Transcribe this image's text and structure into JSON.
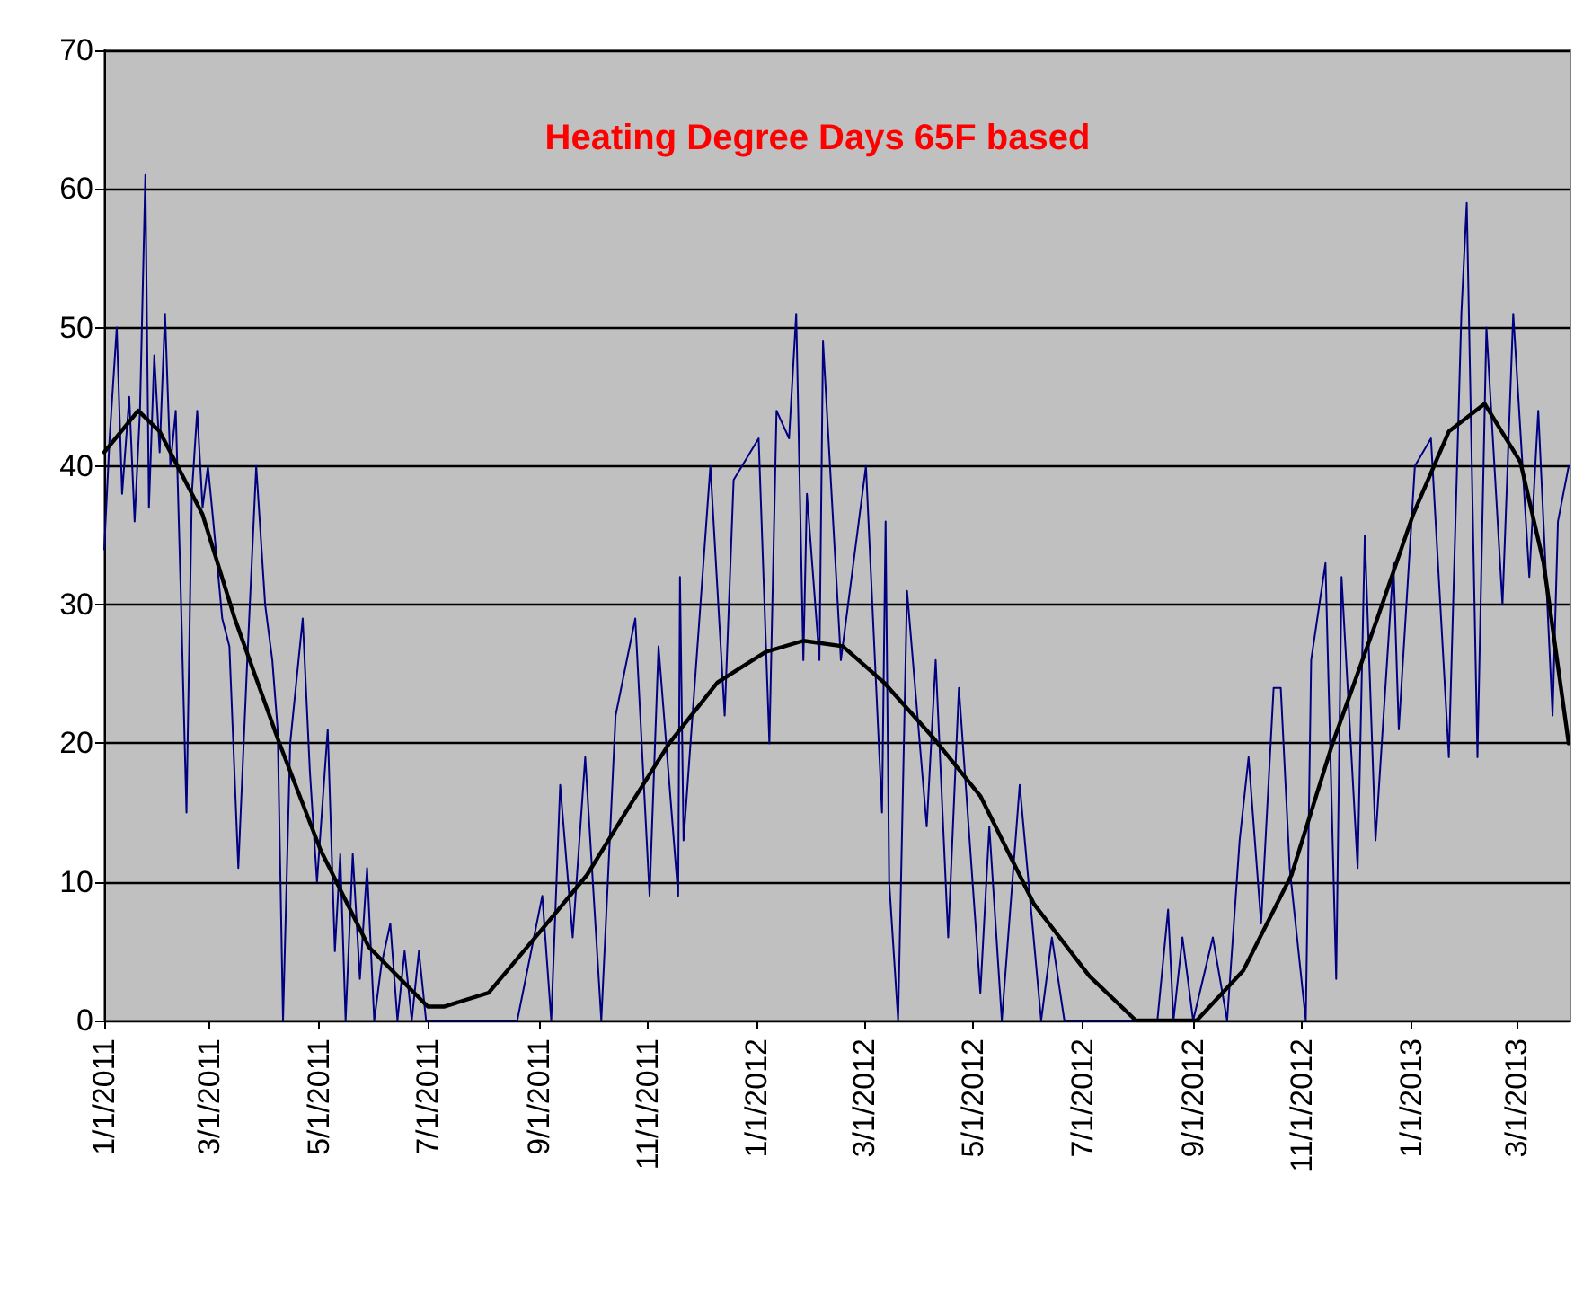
{
  "chart_data": {
    "type": "line",
    "title": "Heating Degree Days 65F based",
    "xlim": [
      "2011-01-01",
      "2013-03-31"
    ],
    "xticks": [
      {
        "value": "2011-01-01",
        "label": "1/1/2011"
      },
      {
        "value": "2011-03-01",
        "label": "3/1/2011"
      },
      {
        "value": "2011-05-01",
        "label": "5/1/2011"
      },
      {
        "value": "2011-07-01",
        "label": "7/1/2011"
      },
      {
        "value": "2011-09-01",
        "label": "9/1/2011"
      },
      {
        "value": "2011-11-01",
        "label": "11/1/2011"
      },
      {
        "value": "2012-01-01",
        "label": "1/1/2012"
      },
      {
        "value": "2012-03-01",
        "label": "3/1/2012"
      },
      {
        "value": "2012-05-01",
        "label": "5/1/2012"
      },
      {
        "value": "2012-07-01",
        "label": "7/1/2012"
      },
      {
        "value": "2012-09-01",
        "label": "9/1/2012"
      },
      {
        "value": "2012-11-01",
        "label": "11/1/2012"
      },
      {
        "value": "2013-01-01",
        "label": "1/1/2013"
      },
      {
        "value": "2013-03-01",
        "label": "3/1/2013"
      }
    ],
    "ylim": [
      0,
      70
    ],
    "yticks": [
      0,
      10,
      20,
      30,
      40,
      50,
      60,
      70
    ],
    "grid": "y",
    "marker": "none",
    "line_style": "solid",
    "series": [
      {
        "color": "#000080",
        "x": [
          "2011-01-01",
          "2011-01-04",
          "2011-01-08",
          "2011-01-11",
          "2011-01-15",
          "2011-01-18",
          "2011-01-21",
          "2011-01-24",
          "2011-01-26",
          "2011-01-29",
          "2011-02-01",
          "2011-02-04",
          "2011-02-07",
          "2011-02-10",
          "2011-02-13",
          "2011-02-16",
          "2011-02-19",
          "2011-02-22",
          "2011-02-25",
          "2011-02-28",
          "2011-03-03",
          "2011-03-08",
          "2011-03-12",
          "2011-03-17",
          "2011-03-22",
          "2011-03-27",
          "2011-04-01",
          "2011-04-05",
          "2011-04-08",
          "2011-04-11",
          "2011-04-15",
          "2011-04-22",
          "2011-04-26",
          "2011-04-30",
          "2011-05-06",
          "2011-05-10",
          "2011-05-13",
          "2011-05-16",
          "2011-05-20",
          "2011-05-24",
          "2011-05-28",
          "2011-06-01",
          "2011-06-05",
          "2011-06-10",
          "2011-06-14",
          "2011-06-18",
          "2011-06-22",
          "2011-06-26",
          "2011-06-30",
          "2011-07-15",
          "2011-08-01",
          "2011-08-20",
          "2011-09-03",
          "2011-09-08",
          "2011-09-13",
          "2011-09-20",
          "2011-09-27",
          "2011-10-06",
          "2011-10-14",
          "2011-10-25",
          "2011-11-02",
          "2011-11-07",
          "2011-11-18",
          "2011-11-19",
          "2011-11-21",
          "2011-12-01",
          "2011-12-06",
          "2011-12-14",
          "2011-12-19",
          "2012-01-02",
          "2012-01-08",
          "2012-01-12",
          "2012-01-19",
          "2012-01-23",
          "2012-01-27",
          "2012-01-29",
          "2012-02-05",
          "2012-02-07",
          "2012-02-17",
          "2012-02-27",
          "2012-03-02",
          "2012-03-11",
          "2012-03-13",
          "2012-03-15",
          "2012-03-20",
          "2012-03-25",
          "2012-04-05",
          "2012-04-10",
          "2012-04-17",
          "2012-04-23",
          "2012-05-05",
          "2012-05-10",
          "2012-05-17",
          "2012-05-27",
          "2012-06-08",
          "2012-06-14",
          "2012-06-21",
          "2012-07-06",
          "2012-07-25",
          "2012-08-12",
          "2012-08-18",
          "2012-08-21",
          "2012-08-26",
          "2012-09-01",
          "2012-09-12",
          "2012-09-20",
          "2012-09-27",
          "2012-10-02",
          "2012-10-09",
          "2012-10-16",
          "2012-10-20",
          "2012-10-25",
          "2012-11-03",
          "2012-11-06",
          "2012-11-14",
          "2012-11-20",
          "2012-11-23",
          "2012-12-02",
          "2012-12-06",
          "2012-12-12",
          "2012-12-22",
          "2012-12-25",
          "2013-01-03",
          "2013-01-12",
          "2013-01-22",
          "2013-01-29",
          "2013-02-01",
          "2013-02-07",
          "2013-02-12",
          "2013-02-21",
          "2013-02-27",
          "2013-03-08",
          "2013-03-13",
          "2013-03-21",
          "2013-03-24",
          "2013-03-30"
        ],
        "values": [
          34,
          42,
          50,
          38,
          45,
          36,
          44,
          61,
          37,
          48,
          41,
          51,
          40,
          44,
          30,
          15,
          38,
          44,
          37,
          40,
          36,
          29,
          27,
          11,
          26,
          40,
          30,
          26,
          21,
          0,
          20,
          29,
          18,
          10,
          21,
          5,
          12,
          0,
          12,
          3,
          11,
          0,
          4,
          7,
          0,
          5,
          0,
          5,
          0,
          0,
          0,
          0,
          9,
          0,
          17,
          6,
          19,
          0,
          22,
          29,
          9,
          27,
          9,
          32,
          13,
          31,
          40,
          22,
          39,
          42,
          20,
          44,
          42,
          51,
          26,
          38,
          26,
          49,
          26,
          36,
          40,
          15,
          36,
          10,
          0,
          31,
          14,
          26,
          6,
          24,
          2,
          14,
          0,
          17,
          0,
          6,
          0,
          0,
          0,
          0,
          8,
          0,
          6,
          0,
          6,
          0,
          13,
          19,
          7,
          24,
          24,
          11,
          0,
          26,
          33,
          3,
          32,
          11,
          35,
          13,
          33,
          21,
          40,
          42,
          19,
          51,
          59,
          19,
          50,
          30,
          51,
          32,
          44,
          22,
          36,
          40
        ]
      },
      {
        "color": "#000000",
        "x": [
          "2011-01-01",
          "2011-01-20",
          "2011-02-01",
          "2011-02-25",
          "2011-03-15",
          "2011-04-09",
          "2011-05-02",
          "2011-05-29",
          "2011-07-01",
          "2011-07-10",
          "2011-08-04",
          "2011-09-03",
          "2011-09-28",
          "2011-10-21",
          "2011-11-13",
          "2011-12-10",
          "2012-01-06",
          "2012-01-27",
          "2012-02-18",
          "2012-03-12",
          "2012-04-08",
          "2012-05-05",
          "2012-06-04",
          "2012-07-05",
          "2012-07-31",
          "2012-09-03",
          "2012-09-29",
          "2012-10-26",
          "2012-11-18",
          "2012-12-13",
          "2013-01-02",
          "2013-01-22",
          "2013-02-11",
          "2013-03-03",
          "2013-03-16",
          "2013-03-30"
        ],
        "values": [
          41,
          44,
          42.5,
          36.5,
          29,
          20,
          12.3,
          5.3,
          1,
          1,
          2,
          6.6,
          10.5,
          15.3,
          20,
          24.4,
          26.6,
          27.4,
          27,
          24.4,
          20.5,
          16.2,
          8.4,
          3.2,
          0,
          0,
          3.6,
          10.5,
          20,
          29,
          36.5,
          42.5,
          44.5,
          40.3,
          33,
          20
        ]
      }
    ]
  }
}
